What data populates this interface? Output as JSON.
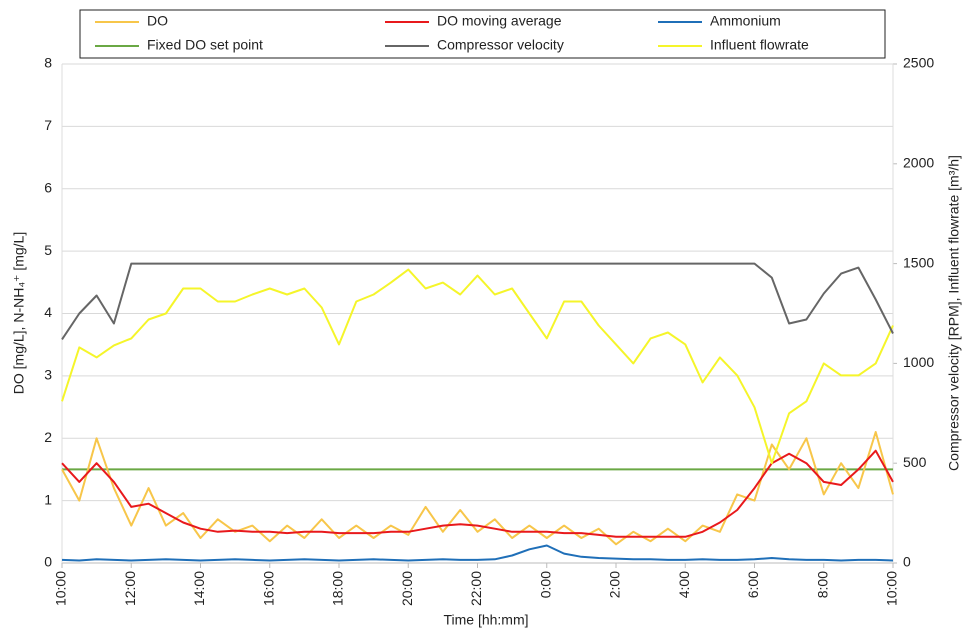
{
  "chart_data": {
    "type": "line",
    "xlabel": "Time [hh:mm]",
    "ylabel": "DO [mg/L], N-NH₄⁺ [mg/L]",
    "y2label": "Compressor velocity [RPM], Influent flowrate [m³/h]",
    "x": [
      10,
      10.5,
      11,
      11.5,
      12,
      12.5,
      13,
      13.5,
      14,
      14.5,
      15,
      15.5,
      16,
      16.5,
      17,
      17.5,
      18,
      18.5,
      19,
      19.5,
      20,
      20.5,
      21,
      21.5,
      22,
      22.5,
      23,
      23.5,
      24,
      24.5,
      25,
      25.5,
      26,
      26.5,
      27,
      27.5,
      28,
      28.5,
      29,
      29.5,
      30,
      30.5,
      31,
      31.5,
      32,
      32.5,
      33,
      33.5,
      34
    ],
    "xlim": [
      10,
      34
    ],
    "xticks": [
      {
        "value": 10,
        "label": "10:00"
      },
      {
        "value": 12,
        "label": "12:00"
      },
      {
        "value": 14,
        "label": "14:00"
      },
      {
        "value": 16,
        "label": "16:00"
      },
      {
        "value": 18,
        "label": "18:00"
      },
      {
        "value": 20,
        "label": "20:00"
      },
      {
        "value": 22,
        "label": "22:00"
      },
      {
        "value": 24,
        "label": "0:00"
      },
      {
        "value": 26,
        "label": "2:00"
      },
      {
        "value": 28,
        "label": "4:00"
      },
      {
        "value": 30,
        "label": "6:00"
      },
      {
        "value": 32,
        "label": "8:00"
      },
      {
        "value": 34,
        "label": "10:00"
      }
    ],
    "ylim": [
      0,
      8
    ],
    "yticks": [
      0,
      1,
      2,
      3,
      4,
      5,
      6,
      7,
      8
    ],
    "y2lim": [
      0,
      2500
    ],
    "y2ticks": [
      0,
      500,
      1000,
      1500,
      2000,
      2500
    ],
    "grid": true,
    "series": [
      {
        "name": "DO",
        "color": "#f7c64a",
        "values": [
          1.5,
          1.0,
          2.0,
          1.2,
          0.6,
          1.2,
          0.6,
          0.8,
          0.4,
          0.7,
          0.5,
          0.6,
          0.35,
          0.6,
          0.4,
          0.7,
          0.4,
          0.6,
          0.4,
          0.6,
          0.45,
          0.9,
          0.5,
          0.85,
          0.5,
          0.7,
          0.4,
          0.6,
          0.4,
          0.6,
          0.4,
          0.55,
          0.3,
          0.5,
          0.35,
          0.55,
          0.35,
          0.6,
          0.5,
          1.1,
          1.0,
          1.9,
          1.5,
          2.0,
          1.1,
          1.6,
          1.2,
          2.1,
          1.1
        ]
      },
      {
        "name": "DO moving average",
        "color": "#e8191c",
        "values": [
          1.6,
          1.3,
          1.6,
          1.3,
          0.9,
          0.95,
          0.8,
          0.65,
          0.55,
          0.5,
          0.52,
          0.5,
          0.5,
          0.48,
          0.5,
          0.5,
          0.48,
          0.48,
          0.48,
          0.5,
          0.5,
          0.55,
          0.6,
          0.62,
          0.6,
          0.55,
          0.5,
          0.5,
          0.5,
          0.48,
          0.48,
          0.45,
          0.42,
          0.42,
          0.42,
          0.42,
          0.42,
          0.5,
          0.65,
          0.85,
          1.2,
          1.6,
          1.75,
          1.6,
          1.3,
          1.25,
          1.5,
          1.8,
          1.3
        ]
      },
      {
        "name": "Ammonium",
        "color": "#1f6fb8",
        "values": [
          0.05,
          0.04,
          0.06,
          0.05,
          0.04,
          0.05,
          0.06,
          0.05,
          0.04,
          0.05,
          0.06,
          0.05,
          0.04,
          0.05,
          0.06,
          0.05,
          0.04,
          0.05,
          0.06,
          0.05,
          0.04,
          0.05,
          0.06,
          0.05,
          0.05,
          0.06,
          0.12,
          0.22,
          0.28,
          0.15,
          0.1,
          0.08,
          0.07,
          0.06,
          0.06,
          0.05,
          0.05,
          0.06,
          0.05,
          0.05,
          0.06,
          0.08,
          0.06,
          0.05,
          0.05,
          0.04,
          0.05,
          0.05,
          0.04
        ]
      },
      {
        "name": "Fixed DO set point",
        "color": "#6aa844",
        "values": [
          1.5,
          1.5,
          1.5,
          1.5,
          1.5,
          1.5,
          1.5,
          1.5,
          1.5,
          1.5,
          1.5,
          1.5,
          1.5,
          1.5,
          1.5,
          1.5,
          1.5,
          1.5,
          1.5,
          1.5,
          1.5,
          1.5,
          1.5,
          1.5,
          1.5,
          1.5,
          1.5,
          1.5,
          1.5,
          1.5,
          1.5,
          1.5,
          1.5,
          1.5,
          1.5,
          1.5,
          1.5,
          1.5,
          1.5,
          1.5,
          1.5,
          1.5,
          1.5,
          1.5,
          1.5,
          1.5,
          1.5,
          1.5,
          1.5
        ]
      },
      {
        "name": "Compressor velocity",
        "color": "#666666",
        "axis": "y2",
        "values": [
          1120,
          1250,
          1340,
          1200,
          1500,
          1500,
          1500,
          1500,
          1500,
          1500,
          1500,
          1500,
          1500,
          1500,
          1500,
          1500,
          1500,
          1500,
          1500,
          1500,
          1500,
          1500,
          1500,
          1500,
          1500,
          1500,
          1500,
          1500,
          1500,
          1500,
          1500,
          1500,
          1500,
          1500,
          1500,
          1500,
          1500,
          1500,
          1500,
          1500,
          1500,
          1430,
          1200,
          1220,
          1350,
          1450,
          1480,
          1320,
          1150
        ]
      },
      {
        "name": "Influent flowrate",
        "color": "#f5f52a",
        "axis": "y2",
        "values": [
          810,
          1080,
          1030,
          1090,
          1125,
          1220,
          1250,
          1375,
          1375,
          1310,
          1310,
          1345,
          1375,
          1345,
          1375,
          1280,
          1095,
          1310,
          1345,
          1405,
          1470,
          1375,
          1405,
          1345,
          1440,
          1345,
          1375,
          1250,
          1125,
          1310,
          1310,
          1190,
          1095,
          1000,
          1125,
          1155,
          1095,
          905,
          1030,
          940,
          780,
          500,
          750,
          810,
          1000,
          940,
          940,
          1000,
          1190
        ]
      }
    ]
  }
}
